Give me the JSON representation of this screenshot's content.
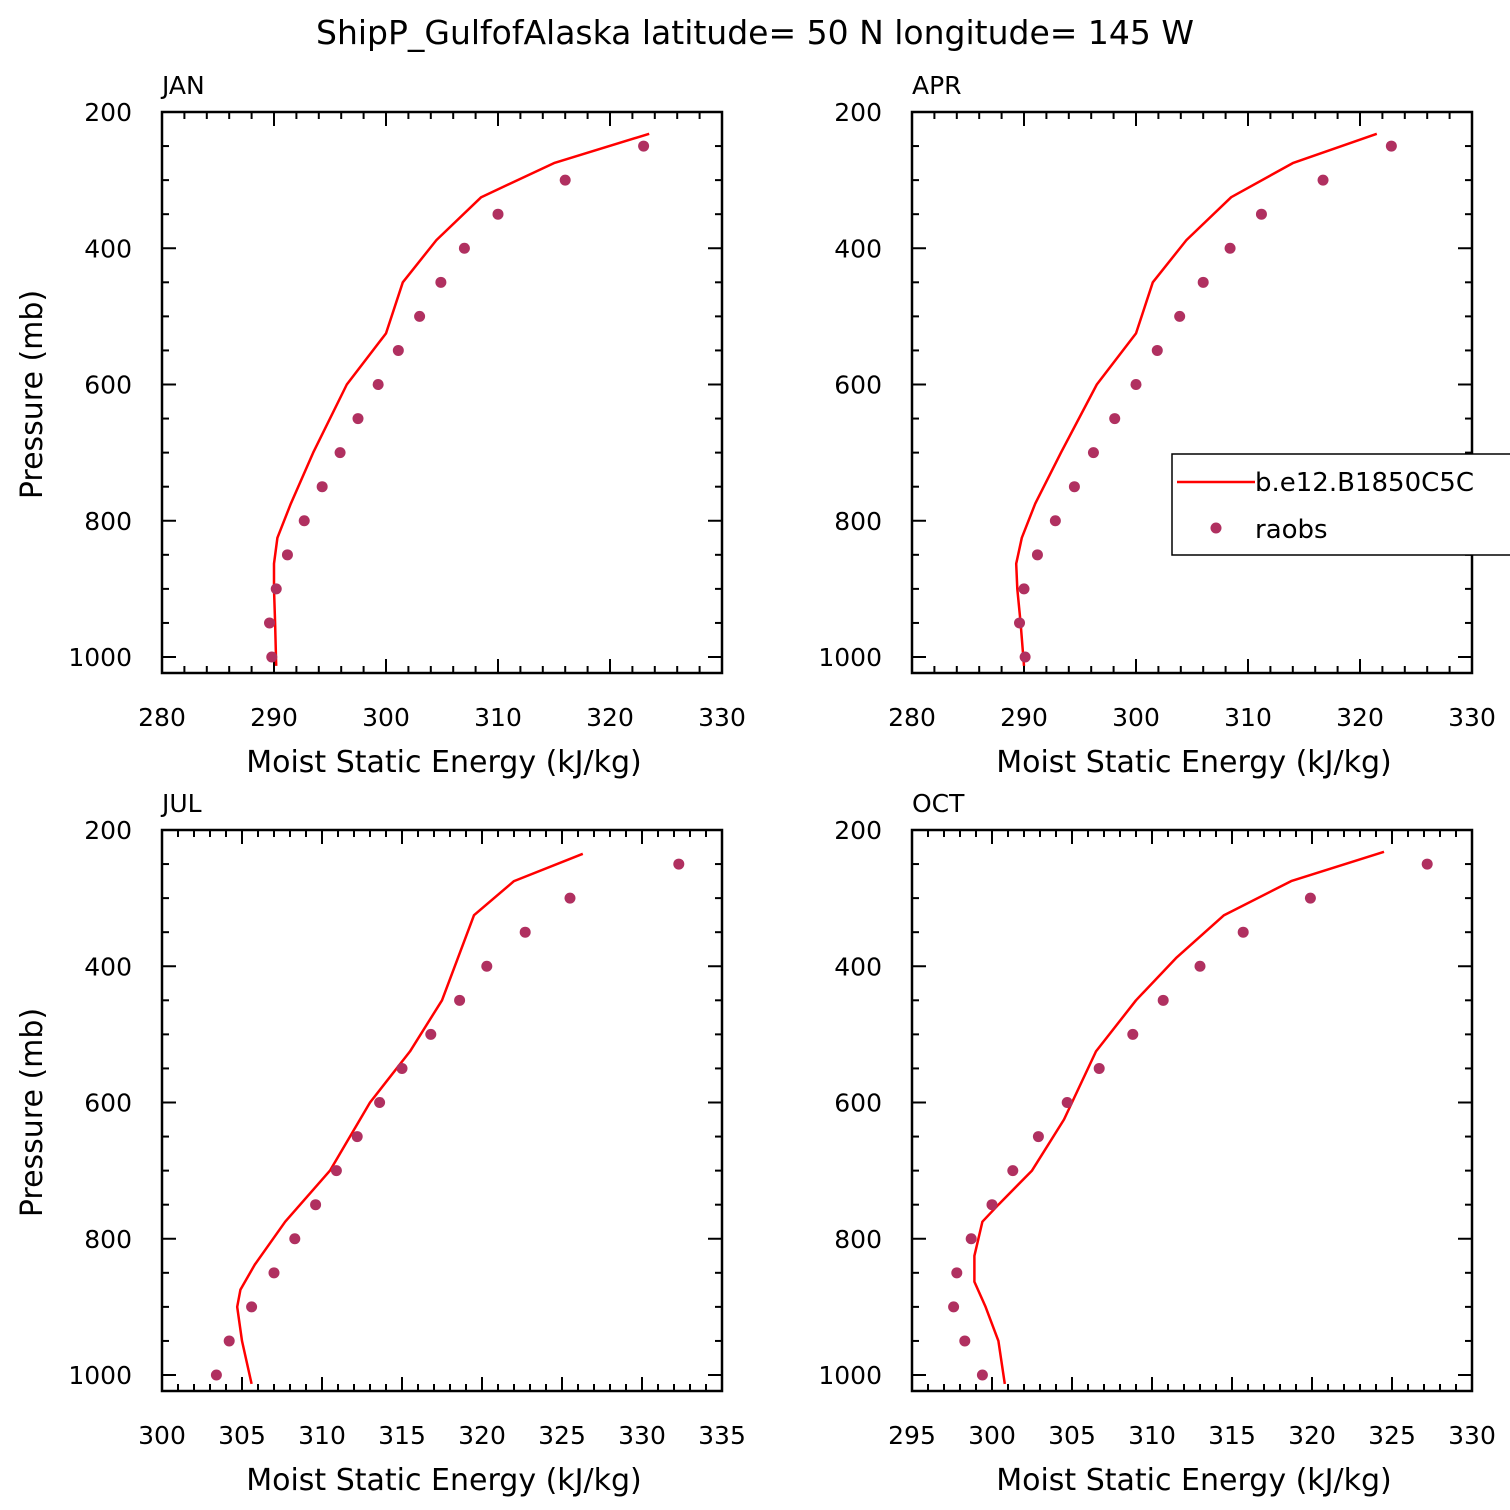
{
  "figure": {
    "title": "ShipP_GulfofAlaska  latitude= 50 N longitude= 145 W"
  },
  "legend": {
    "model_label": "b.e12.B1850C5C",
    "obs_label": "raobs",
    "model_color": "#ff0000",
    "obs_color": "#b03060"
  },
  "chart_data": [
    {
      "type": "line",
      "panel_label": "JAN",
      "xlabel": "Moist Static Energy (kJ/kg)",
      "ylabel": "Pressure (mb)",
      "xlim": [
        280,
        330
      ],
      "ylim": [
        1000,
        200
      ],
      "xticks": [
        280,
        290,
        300,
        310,
        320,
        330
      ],
      "yticks": [
        200,
        400,
        600,
        800,
        1000
      ],
      "series": [
        {
          "name": "b.e12.B1850C5C",
          "kind": "line",
          "x": [
            290.2,
            290.1,
            290.0,
            290.0,
            290.3,
            291.5,
            293.5,
            296.5,
            300.0,
            301.5,
            304.5,
            308.5,
            315.0,
            323.5
          ],
          "y": [
            1013,
            950,
            900,
            863,
            825,
            775,
            700,
            600,
            525,
            450,
            388,
            325,
            275,
            232
          ]
        },
        {
          "name": "raobs",
          "kind": "scatter",
          "x": [
            289.8,
            289.6,
            290.2,
            291.2,
            292.7,
            294.3,
            295.9,
            297.5,
            299.3,
            301.1,
            303.0,
            304.9,
            307.0,
            310.0,
            316.0,
            323.0
          ],
          "y": [
            1000,
            950,
            900,
            850,
            800,
            750,
            700,
            650,
            600,
            550,
            500,
            450,
            400,
            350,
            300,
            250
          ]
        }
      ]
    },
    {
      "type": "line",
      "panel_label": "APR",
      "xlabel": "Moist Static Energy (kJ/kg)",
      "ylabel": "",
      "xlim": [
        280,
        330
      ],
      "ylim": [
        1000,
        200
      ],
      "xticks": [
        280,
        290,
        300,
        310,
        320,
        330
      ],
      "yticks": [
        200,
        400,
        600,
        800,
        1000
      ],
      "series": [
        {
          "name": "b.e12.B1850C5C",
          "kind": "line",
          "x": [
            290.0,
            289.7,
            289.4,
            289.3,
            289.8,
            291.0,
            293.3,
            296.5,
            300.0,
            301.5,
            304.5,
            308.5,
            314.0,
            321.5
          ],
          "y": [
            1013,
            950,
            900,
            863,
            825,
            775,
            700,
            600,
            525,
            450,
            388,
            325,
            275,
            232
          ]
        },
        {
          "name": "raobs",
          "kind": "scatter",
          "x": [
            290.1,
            289.6,
            290.0,
            291.2,
            292.8,
            294.5,
            296.2,
            298.1,
            300.0,
            301.9,
            303.9,
            306.0,
            308.4,
            311.2,
            316.7,
            322.8
          ],
          "y": [
            1000,
            950,
            900,
            850,
            800,
            750,
            700,
            650,
            600,
            550,
            500,
            450,
            400,
            350,
            300,
            250
          ]
        }
      ]
    },
    {
      "type": "line",
      "panel_label": "JUL",
      "xlabel": "Moist Static Energy (kJ/kg)",
      "ylabel": "Pressure (mb)",
      "xlim": [
        300,
        335
      ],
      "ylim": [
        1000,
        200
      ],
      "xticks": [
        300,
        305,
        310,
        315,
        320,
        325,
        330,
        335
      ],
      "yticks": [
        200,
        400,
        600,
        800,
        1000
      ],
      "series": [
        {
          "name": "b.e12.B1850C5C",
          "kind": "line",
          "x": [
            305.6,
            305.0,
            304.7,
            304.9,
            305.8,
            307.7,
            310.5,
            313.0,
            315.5,
            317.5,
            319.5,
            322.0,
            326.3
          ],
          "y": [
            1013,
            950,
            900,
            875,
            838,
            775,
            700,
            600,
            525,
            450,
            325,
            275,
            235
          ]
        },
        {
          "name": "raobs",
          "kind": "scatter",
          "x": [
            303.4,
            304.2,
            305.6,
            307.0,
            308.3,
            309.6,
            310.9,
            312.2,
            313.6,
            315.0,
            316.8,
            318.6,
            320.3,
            322.7,
            325.5,
            332.3
          ],
          "y": [
            1000,
            950,
            900,
            850,
            800,
            750,
            700,
            650,
            600,
            550,
            500,
            450,
            400,
            350,
            300,
            250
          ]
        }
      ]
    },
    {
      "type": "line",
      "panel_label": "OCT",
      "xlabel": "Moist Static Energy (kJ/kg)",
      "ylabel": "",
      "xlim": [
        295,
        330
      ],
      "ylim": [
        1000,
        200
      ],
      "xticks": [
        295,
        300,
        305,
        310,
        315,
        320,
        325,
        330
      ],
      "yticks": [
        200,
        400,
        600,
        800,
        1000
      ],
      "series": [
        {
          "name": "b.e12.B1850C5C",
          "kind": "line",
          "x": [
            300.8,
            300.4,
            299.6,
            298.9,
            298.9,
            299.4,
            300.4,
            302.5,
            304.5,
            306.5,
            309.0,
            311.5,
            314.5,
            318.7,
            324.5
          ],
          "y": [
            1013,
            950,
            900,
            863,
            825,
            775,
            750,
            700,
            625,
            525,
            450,
            388,
            325,
            275,
            232
          ]
        },
        {
          "name": "raobs",
          "kind": "scatter",
          "x": [
            299.4,
            298.3,
            297.6,
            297.8,
            298.7,
            300.0,
            301.3,
            302.9,
            304.7,
            306.7,
            308.8,
            310.7,
            313.0,
            315.7,
            319.9,
            327.2
          ],
          "y": [
            1000,
            950,
            900,
            850,
            800,
            750,
            700,
            650,
            600,
            550,
            500,
            450,
            400,
            350,
            300,
            250
          ]
        }
      ]
    }
  ]
}
